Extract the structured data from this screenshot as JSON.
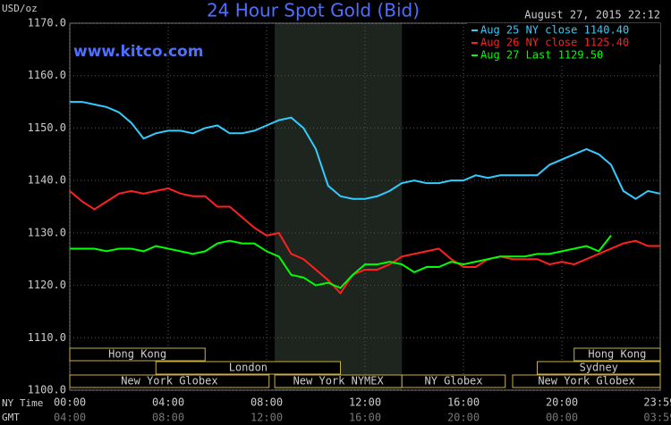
{
  "chart_data": {
    "type": "line",
    "title": "24 Hour Spot Gold (Bid)",
    "y_label": "USD/oz",
    "watermark": "www.kitco.com",
    "timestamp": "August 27, 2015 22:12",
    "x_label": "NY Time",
    "x2_label": "GMT",
    "x": [
      0,
      0.5,
      1,
      1.5,
      2,
      2.5,
      3,
      3.5,
      4,
      4.5,
      5,
      5.5,
      6,
      6.5,
      7,
      7.5,
      8,
      8.5,
      9,
      9.5,
      10,
      10.5,
      11,
      11.5,
      12,
      12.5,
      13,
      13.5,
      14,
      14.5,
      15,
      15.5,
      16,
      16.5,
      17,
      17.5,
      18,
      18.5,
      19,
      19.5,
      20,
      20.5,
      21,
      21.5,
      22,
      22.5,
      23,
      23.5,
      23.98
    ],
    "series": [
      {
        "name": "Aug 25 NY close 1140.40",
        "color": "#33ccff",
        "values": [
          1155,
          1155,
          1154.5,
          1154,
          1153,
          1151,
          1148,
          1149,
          1149.5,
          1149.5,
          1149,
          1150,
          1150.5,
          1149,
          1149,
          1149.5,
          1150.5,
          1151.5,
          1152,
          1150,
          1146,
          1139,
          1137,
          1136.5,
          1136.5,
          1137,
          1138,
          1139.5,
          1140,
          1139.5,
          1139.5,
          1140,
          1140,
          1141,
          1140.5,
          1141,
          1141,
          1141,
          1141,
          1143,
          1144,
          1145,
          1146,
          1145,
          1143,
          1138,
          1136.5,
          1138,
          1137.5
        ]
      },
      {
        "name": "Aug 26 NY close 1125.40",
        "color": "#ff2020",
        "values": [
          1138,
          1136,
          1134.5,
          1136,
          1137.5,
          1138,
          1137.5,
          1138,
          1138.5,
          1137.5,
          1137,
          1137,
          1135,
          1135,
          1133,
          1131,
          1129.5,
          1130,
          1126,
          1125,
          1123,
          1121,
          1118.5,
          1122,
          1123,
          1123,
          1124,
          1125.5,
          1126,
          1126.5,
          1127,
          1125,
          1123.5,
          1123.5,
          1125,
          1125.5,
          1125,
          1125,
          1125,
          1124,
          1124.5,
          1124,
          1125,
          1126,
          1127,
          1128,
          1128.5,
          1127.5,
          1127.5
        ]
      },
      {
        "name": "Aug 27 Last 1129.50",
        "color": "#00ff00",
        "values": [
          1127,
          1127,
          1127,
          1126.5,
          1127,
          1127,
          1126.5,
          1127.5,
          1127,
          1126.5,
          1126,
          1126.5,
          1128,
          1128.5,
          1128,
          1128,
          1126.5,
          1125.5,
          1122,
          1121.5,
          1120,
          1120.5,
          1119.5,
          1122,
          1124,
          1124,
          1124.5,
          1124,
          1122.5,
          1123.5,
          1123.5,
          1124.5,
          1124,
          1124.5,
          1125,
          1125.5,
          1125.5,
          1125.5,
          1126,
          1126,
          1126.5,
          1127,
          1127.5,
          1126.5,
          1129.5,
          null,
          null,
          null,
          null
        ]
      }
    ],
    "xlim": [
      0,
      24
    ],
    "xticks": [
      {
        "value": 0,
        "label": "00:00"
      },
      {
        "value": 4,
        "label": "04:00"
      },
      {
        "value": 8,
        "label": "08:00"
      },
      {
        "value": 12,
        "label": "12:00"
      },
      {
        "value": 16,
        "label": "16:00"
      },
      {
        "value": 20,
        "label": "20:00"
      },
      {
        "value": 23.98,
        "label": "23:59"
      }
    ],
    "x2ticks": [
      {
        "value": 0,
        "label": "04:00"
      },
      {
        "value": 4,
        "label": "08:00"
      },
      {
        "value": 8,
        "label": "12:00"
      },
      {
        "value": 12,
        "label": "16:00"
      },
      {
        "value": 16,
        "label": "20:00"
      },
      {
        "value": 20,
        "label": "00:00"
      },
      {
        "value": 23.98,
        "label": "03:59"
      }
    ],
    "ylim": [
      1100,
      1170
    ],
    "yticks": [
      {
        "value": 1100,
        "label": "1100.0"
      },
      {
        "value": 1110,
        "label": "1110.0"
      },
      {
        "value": 1120,
        "label": "1120.0"
      },
      {
        "value": 1130,
        "label": "1130.0"
      },
      {
        "value": 1140,
        "label": "1140.0"
      },
      {
        "value": 1150,
        "label": "1150.0"
      },
      {
        "value": 1160,
        "label": "1160.0"
      },
      {
        "value": 1170,
        "label": "1170.0"
      }
    ],
    "grid": true,
    "highlight": [
      8.33,
      13.5
    ],
    "sessions": [
      {
        "label": "Hong Kong",
        "start": 0,
        "end": 5.5,
        "row": 0
      },
      {
        "label": "Hong Kong",
        "start": 20.5,
        "end": 24,
        "row": 0
      },
      {
        "label": "London",
        "start": 3.5,
        "end": 11,
        "row": 1
      },
      {
        "label": "Sydney",
        "start": 19,
        "end": 24,
        "row": 1
      },
      {
        "label": "New York Globex",
        "start": 0,
        "end": 8.1,
        "row": 2
      },
      {
        "label": "New York NYMEX",
        "start": 8.33,
        "end": 13.5,
        "row": 2
      },
      {
        "label": "NY Globex",
        "start": 13.5,
        "end": 17.7,
        "row": 2
      },
      {
        "label": "New York Globex",
        "start": 18,
        "end": 24,
        "row": 2
      }
    ]
  }
}
